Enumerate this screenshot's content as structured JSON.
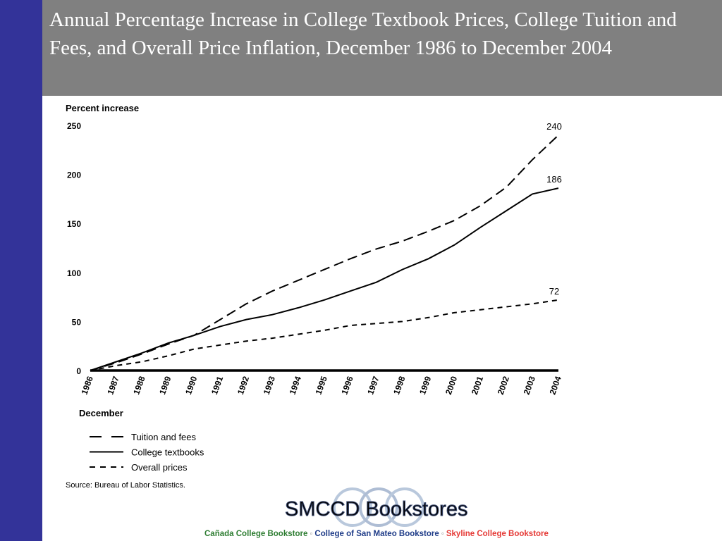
{
  "slide": {
    "title": "Annual Percentage Increase in College Textbook Prices, College Tuition and Fees, and Overall Price Inflation, December 1986 to December 2004"
  },
  "chart_data": {
    "type": "line",
    "ylabel": "Percent increase",
    "xlabel": "December",
    "ylim": [
      0,
      250
    ],
    "yticks": [
      "0",
      "50",
      "100",
      "150",
      "200",
      "250"
    ],
    "x": [
      "1986",
      "1987",
      "1988",
      "1989",
      "1990",
      "1991",
      "1992",
      "1993",
      "1994",
      "1995",
      "1996",
      "1997",
      "1998",
      "1999",
      "2000",
      "2001",
      "2002",
      "2003",
      "2004"
    ],
    "series": [
      {
        "name": "Tuition and fees",
        "style": "long-dash",
        "values": [
          0,
          8,
          17,
          27,
          36,
          52,
          68,
          81,
          92,
          103,
          114,
          124,
          132,
          142,
          153,
          168,
          187,
          215,
          240
        ],
        "end_label": "240"
      },
      {
        "name": "College textbooks",
        "style": "solid",
        "values": [
          0,
          9,
          18,
          28,
          36,
          45,
          52,
          57,
          64,
          72,
          81,
          90,
          103,
          114,
          128,
          146,
          163,
          180,
          186
        ],
        "end_label": "186"
      },
      {
        "name": "Overall prices",
        "style": "short-dash",
        "values": [
          0,
          5,
          9,
          15,
          22,
          26,
          30,
          33,
          37,
          41,
          46,
          48,
          50,
          54,
          59,
          62,
          65,
          68,
          72
        ],
        "end_label": "72"
      }
    ],
    "legend_position": "bottom-left",
    "grid": false,
    "source": "Source: Bureau of Labor Statistics.",
    "colors": {
      "lines": "#000000"
    }
  },
  "brand": {
    "name": "SMCCD Bookstores",
    "footer": {
      "canada": "Cañada College Bookstore",
      "canada_color": "#2e7d32",
      "csm": "College of San Mateo Bookstore",
      "csm_color": "#1f3c88",
      "skyline": "Skyline College Bookstore",
      "skyline_color": "#e53935",
      "separator": "◦"
    }
  },
  "theme": {
    "left_bar": "#333399",
    "title_band": "#808080"
  }
}
